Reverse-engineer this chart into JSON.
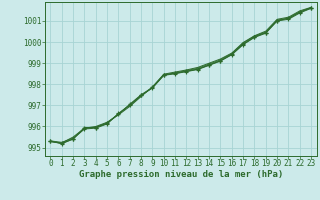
{
  "title": "Graphe pression niveau de la mer (hPa)",
  "background_color": "#cceaea",
  "grid_color": "#a8d4d4",
  "line_color": "#2d6b2d",
  "xlim_min": -0.5,
  "xlim_max": 23.5,
  "ylim_min": 994.6,
  "ylim_max": 1001.9,
  "yticks": [
    995,
    996,
    997,
    998,
    999,
    1000,
    1001
  ],
  "xticks": [
    0,
    1,
    2,
    3,
    4,
    5,
    6,
    7,
    8,
    9,
    10,
    11,
    12,
    13,
    14,
    15,
    16,
    17,
    18,
    19,
    20,
    21,
    22,
    23
  ],
  "x": [
    0,
    1,
    2,
    3,
    4,
    5,
    6,
    7,
    8,
    9,
    10,
    11,
    12,
    13,
    14,
    15,
    16,
    17,
    18,
    19,
    20,
    21,
    22,
    23
  ],
  "series1": [
    995.3,
    995.2,
    995.4,
    995.95,
    995.95,
    996.15,
    996.58,
    997.05,
    997.5,
    997.85,
    998.45,
    998.52,
    998.62,
    998.72,
    998.92,
    999.12,
    999.42,
    999.9,
    1000.25,
    1000.45,
    1001.02,
    1001.12,
    1001.42,
    1001.62
  ],
  "series2": [
    995.3,
    995.18,
    995.42,
    995.88,
    995.92,
    996.12,
    996.62,
    997.02,
    997.48,
    997.82,
    998.42,
    998.5,
    998.6,
    998.7,
    998.9,
    999.1,
    999.4,
    999.88,
    1000.22,
    1000.42,
    1001.0,
    1001.08,
    1001.38,
    1001.6
  ],
  "series3": [
    995.28,
    995.22,
    995.5,
    995.92,
    996.0,
    996.2,
    996.55,
    996.95,
    997.42,
    997.88,
    998.48,
    998.58,
    998.68,
    998.8,
    999.0,
    999.2,
    999.48,
    999.98,
    1000.3,
    1000.52,
    1001.08,
    1001.18,
    1001.48,
    1001.65
  ],
  "series4": [
    995.32,
    995.25,
    995.45,
    995.9,
    995.96,
    996.18,
    996.6,
    997.0,
    997.45,
    997.85,
    998.44,
    998.54,
    998.65,
    998.76,
    998.96,
    999.16,
    999.45,
    999.95,
    1000.28,
    1000.48,
    1001.04,
    1001.14,
    1001.44,
    1001.63
  ],
  "title_fontsize": 6.5,
  "tick_fontsize": 5.5
}
